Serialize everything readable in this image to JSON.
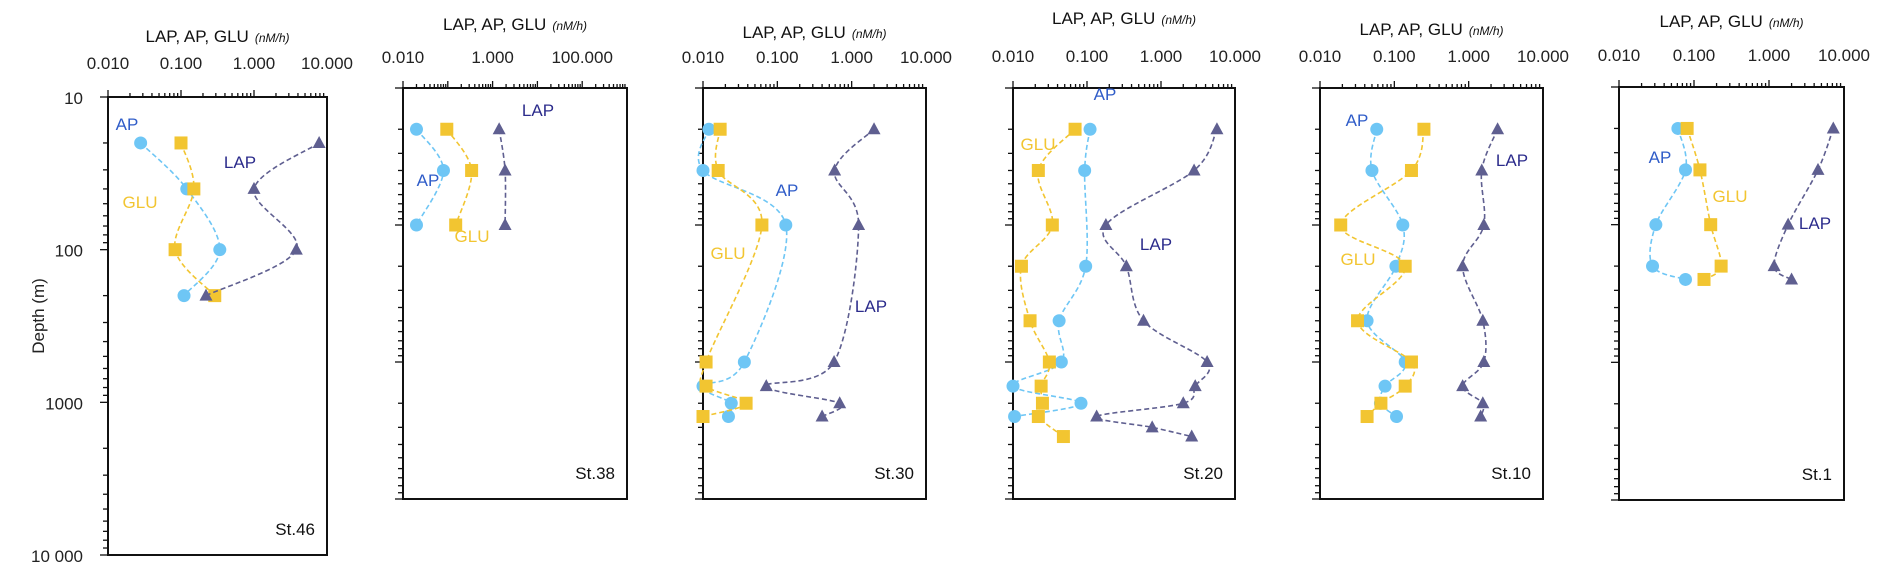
{
  "colors": {
    "AP": "#6ec6f5",
    "AP_label": "#2f5cc8",
    "GLU": "#f2c531",
    "GLU_label": "#f2c531",
    "LAP": "#5f5f90",
    "LAP_label": "#2c2c8c",
    "axis": "#111111"
  },
  "chart_data": [
    {
      "type": "line",
      "station": "St.46",
      "title": "LAP, AP, GLU",
      "title_unit": "(nM/h)",
      "xscale": "log",
      "xlim": [
        0.01,
        10
      ],
      "xtick_labels": [
        "0.010",
        "0.100",
        "1.000",
        "10.000"
      ],
      "xtick_values": [
        0.01,
        0.1,
        1,
        10
      ],
      "ylabel": "Depth (m)",
      "yscale": "log",
      "ylim": [
        10,
        10000
      ],
      "ytick_labels": [
        "10",
        "100",
        "1000",
        "10 000"
      ],
      "ytick_values": [
        10,
        100,
        1000,
        10000
      ],
      "series": [
        {
          "name": "AP",
          "depths": [
            20,
            40,
            100,
            200
          ],
          "values": [
            0.028,
            0.12,
            0.34,
            0.11
          ]
        },
        {
          "name": "GLU",
          "depths": [
            20,
            40,
            100,
            200
          ],
          "values": [
            0.1,
            0.15,
            0.083,
            0.29
          ]
        },
        {
          "name": "LAP",
          "depths": [
            20,
            40,
            100,
            200
          ],
          "values": [
            7.8,
            1.0,
            3.8,
            0.22
          ]
        }
      ]
    },
    {
      "type": "line",
      "station": "St.38",
      "title": "LAP, AP, GLU",
      "title_unit": "(nM/h)",
      "xscale": "log",
      "xlim": [
        0.01,
        1000
      ],
      "xtick_labels": [
        "0.010",
        "1.000",
        "100.000"
      ],
      "xtick_values": [
        0.01,
        1,
        100
      ],
      "yscale": "log",
      "ylim": [
        10,
        10000
      ],
      "series": [
        {
          "name": "AP",
          "depths": [
            20,
            40,
            100
          ],
          "values": [
            0.02,
            0.08,
            0.02
          ]
        },
        {
          "name": "GLU",
          "depths": [
            20,
            40,
            100
          ],
          "values": [
            0.095,
            0.34,
            0.15
          ]
        },
        {
          "name": "LAP",
          "depths": [
            20,
            40,
            100
          ],
          "values": [
            1.4,
            1.9,
            1.9
          ]
        }
      ]
    },
    {
      "type": "line",
      "station": "St.30",
      "title": "LAP, AP, GLU",
      "title_unit": "(nM/h)",
      "xscale": "log",
      "xlim": [
        0.01,
        10
      ],
      "xtick_labels": [
        "0.010",
        "0.100",
        "1.000",
        "10.000"
      ],
      "xtick_values": [
        0.01,
        0.1,
        1,
        10
      ],
      "yscale": "log",
      "ylim": [
        10,
        10000
      ],
      "series": [
        {
          "name": "AP",
          "depths": [
            20,
            40,
            100,
            1000,
            1500,
            2000,
            2500
          ],
          "values": [
            0.012,
            0.01,
            0.13,
            0.036,
            0.01,
            0.024,
            0.022
          ]
        },
        {
          "name": "GLU",
          "depths": [
            20,
            40,
            100,
            1000,
            1500,
            2000,
            2500
          ],
          "values": [
            0.017,
            0.016,
            0.062,
            0.011,
            0.011,
            0.038,
            0.01
          ]
        },
        {
          "name": "LAP",
          "depths": [
            20,
            40,
            100,
            1000,
            1500,
            2000,
            2500
          ],
          "values": [
            2.0,
            0.59,
            1.24,
            0.58,
            0.071,
            0.69,
            0.4
          ]
        }
      ]
    },
    {
      "type": "line",
      "station": "St.20",
      "title": "LAP, AP, GLU",
      "title_unit": "(nM/h)",
      "xscale": "log",
      "xlim": [
        0.01,
        10
      ],
      "xtick_labels": [
        "0.010",
        "0.100",
        "1.000",
        "10.000"
      ],
      "xtick_values": [
        0.01,
        0.1,
        1,
        10
      ],
      "yscale": "log",
      "ylim": [
        10,
        10000
      ],
      "series": [
        {
          "name": "AP",
          "depths": [
            20,
            40,
            200,
            500,
            1000,
            1500,
            2000,
            2500
          ],
          "values": [
            0.11,
            0.093,
            0.096,
            0.042,
            0.045,
            0.01,
            0.083,
            0.0105
          ]
        },
        {
          "name": "GLU",
          "depths": [
            20,
            40,
            100,
            200,
            500,
            1000,
            1500,
            2000,
            2500,
            3500
          ],
          "values": [
            0.069,
            0.022,
            0.034,
            0.013,
            0.017,
            0.031,
            0.024,
            0.025,
            0.022,
            0.048
          ]
        },
        {
          "name": "LAP",
          "depths": [
            20,
            40,
            100,
            200,
            500,
            1000,
            1500,
            2000,
            2500,
            3000,
            3500
          ],
          "values": [
            5.7,
            2.8,
            0.18,
            0.34,
            0.58,
            4.2,
            2.9,
            2.0,
            0.135,
            0.76,
            2.6
          ]
        }
      ]
    },
    {
      "type": "line",
      "station": "St.10",
      "title": "LAP, AP, GLU",
      "title_unit": "(nM/h)",
      "xscale": "log",
      "xlim": [
        0.01,
        10
      ],
      "xtick_labels": [
        "0.010",
        "0.100",
        "1.000",
        "10.000"
      ],
      "xtick_values": [
        0.01,
        0.1,
        1,
        10
      ],
      "yscale": "log",
      "ylim": [
        10,
        10000
      ],
      "series": [
        {
          "name": "AP",
          "depths": [
            20,
            40,
            100,
            200,
            500,
            1000,
            1500,
            2000,
            2500
          ],
          "values": [
            0.058,
            0.05,
            0.13,
            0.105,
            0.043,
            0.14,
            0.075,
            0.065,
            0.107
          ]
        },
        {
          "name": "GLU",
          "depths": [
            20,
            40,
            100,
            200,
            500,
            1000,
            1500,
            2000,
            2500
          ],
          "values": [
            0.25,
            0.17,
            0.019,
            0.14,
            0.032,
            0.17,
            0.14,
            0.066,
            0.043
          ]
        },
        {
          "name": "LAP",
          "depths": [
            20,
            40,
            100,
            200,
            500,
            1000,
            1500,
            2000,
            2500
          ],
          "values": [
            2.45,
            1.5,
            1.6,
            0.83,
            1.55,
            1.6,
            0.83,
            1.55,
            1.45
          ]
        }
      ]
    },
    {
      "type": "line",
      "station": "St.1",
      "title": "LAP, AP, GLU",
      "title_unit": "(nM/h)",
      "xscale": "log",
      "xlim": [
        0.01,
        10
      ],
      "xtick_labels": [
        "0.010",
        "0.100",
        "1.000",
        "10.000"
      ],
      "xtick_values": [
        0.01,
        0.1,
        1,
        10
      ],
      "yscale": "log",
      "ylim": [
        10,
        10000
      ],
      "series": [
        {
          "name": "AP",
          "depths": [
            20,
            40,
            100,
            200,
            250
          ],
          "values": [
            0.061,
            0.077,
            0.031,
            0.028,
            0.077
          ]
        },
        {
          "name": "GLU",
          "depths": [
            20,
            40,
            100,
            200,
            250
          ],
          "values": [
            0.081,
            0.12,
            0.167,
            0.23,
            0.136
          ]
        },
        {
          "name": "LAP",
          "depths": [
            20,
            40,
            100,
            200,
            250
          ],
          "values": [
            7.2,
            4.5,
            1.8,
            1.17,
            2.0
          ]
        }
      ]
    }
  ]
}
